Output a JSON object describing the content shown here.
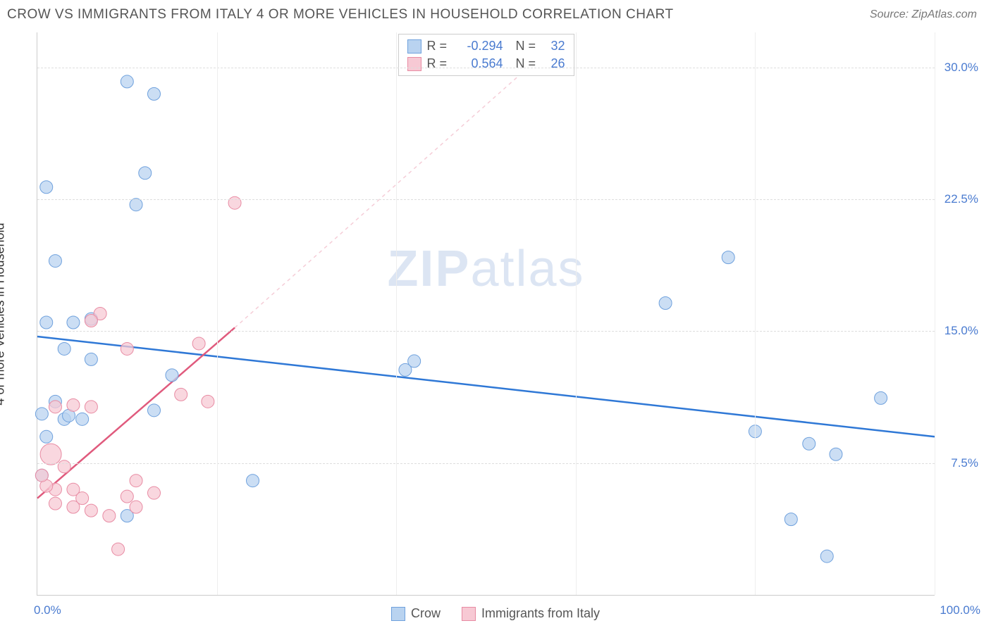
{
  "header": {
    "title": "CROW VS IMMIGRANTS FROM ITALY 4 OR MORE VEHICLES IN HOUSEHOLD CORRELATION CHART",
    "source": "Source: ZipAtlas.com"
  },
  "ylabel": "4 or more Vehicles in Household",
  "watermark": {
    "bold": "ZIP",
    "light": "atlas"
  },
  "chart": {
    "type": "scatter",
    "background_color": "#ffffff",
    "grid_color": "#dddddd",
    "axis_color": "#cccccc",
    "tick_color": "#4a7bd0",
    "tick_fontsize": 17,
    "xlim": [
      0,
      100
    ],
    "ylim": [
      0,
      32
    ],
    "xticks": [
      {
        "v": 0,
        "label": "0.0%"
      },
      {
        "v": 100,
        "label": "100.0%"
      }
    ],
    "vgrid": [
      20,
      40,
      60,
      80,
      100
    ],
    "yticks": [
      {
        "v": 7.5,
        "label": "7.5%"
      },
      {
        "v": 15.0,
        "label": "15.0%"
      },
      {
        "v": 22.5,
        "label": "22.5%"
      },
      {
        "v": 30.0,
        "label": "30.0%"
      }
    ],
    "series": [
      {
        "name": "Crow",
        "marker_fill": "#b9d3f0",
        "marker_stroke": "#6fa1dd",
        "marker_r": 9,
        "line_color": "#2f78d6",
        "line_width": 2.5,
        "dashed_color": "#b9d3f0",
        "R": "-0.294",
        "N": "32",
        "trend": {
          "x1": 0,
          "y1": 14.7,
          "x2": 100,
          "y2": 9.0
        },
        "points": [
          {
            "x": 1,
            "y": 23.2
          },
          {
            "x": 10,
            "y": 29.2
          },
          {
            "x": 13,
            "y": 28.5
          },
          {
            "x": 12,
            "y": 24.0
          },
          {
            "x": 11,
            "y": 22.2
          },
          {
            "x": 2,
            "y": 19.0
          },
          {
            "x": 1,
            "y": 15.5
          },
          {
            "x": 4,
            "y": 15.5
          },
          {
            "x": 3,
            "y": 14.0
          },
          {
            "x": 6,
            "y": 13.4
          },
          {
            "x": 2,
            "y": 11.0
          },
          {
            "x": 3,
            "y": 10.0
          },
          {
            "x": 3.5,
            "y": 10.2
          },
          {
            "x": 5,
            "y": 10.0
          },
          {
            "x": 1,
            "y": 9.0
          },
          {
            "x": 10,
            "y": 4.5
          },
          {
            "x": 13,
            "y": 10.5
          },
          {
            "x": 15,
            "y": 12.5
          },
          {
            "x": 24,
            "y": 6.5
          },
          {
            "x": 41,
            "y": 12.8
          },
          {
            "x": 42,
            "y": 13.3
          },
          {
            "x": 70,
            "y": 16.6
          },
          {
            "x": 77,
            "y": 19.2
          },
          {
            "x": 80,
            "y": 9.3
          },
          {
            "x": 84,
            "y": 4.3
          },
          {
            "x": 86,
            "y": 8.6
          },
          {
            "x": 88,
            "y": 2.2
          },
          {
            "x": 89,
            "y": 8.0
          },
          {
            "x": 94,
            "y": 11.2
          },
          {
            "x": 0.5,
            "y": 6.8
          },
          {
            "x": 0.5,
            "y": 10.3
          },
          {
            "x": 6,
            "y": 15.7
          }
        ]
      },
      {
        "name": "Immigrants from Italy",
        "marker_fill": "#f7c9d4",
        "marker_stroke": "#e88ba3",
        "marker_r": 9,
        "line_color": "#e05a7d",
        "line_width": 2.5,
        "dashed_color": "#f5cdd7",
        "R": "0.564",
        "N": "26",
        "trend": {
          "x1": 0,
          "y1": 5.5,
          "x2": 22,
          "y2": 15.2
        },
        "trend_dashed": {
          "x1": 22,
          "y1": 15.2,
          "x2": 58,
          "y2": 31.5
        },
        "points": [
          {
            "x": 22,
            "y": 22.3
          },
          {
            "x": 7,
            "y": 16.0
          },
          {
            "x": 6,
            "y": 15.6
          },
          {
            "x": 10,
            "y": 14.0
          },
          {
            "x": 18,
            "y": 14.3
          },
          {
            "x": 16,
            "y": 11.4
          },
          {
            "x": 19,
            "y": 11.0
          },
          {
            "x": 2,
            "y": 10.7
          },
          {
            "x": 4,
            "y": 10.8
          },
          {
            "x": 6,
            "y": 10.7
          },
          {
            "x": 1.5,
            "y": 8.0,
            "r": 15
          },
          {
            "x": 3,
            "y": 7.3
          },
          {
            "x": 2,
            "y": 6.0
          },
          {
            "x": 4,
            "y": 6.0
          },
          {
            "x": 4,
            "y": 5.0
          },
          {
            "x": 5,
            "y": 5.5
          },
          {
            "x": 6,
            "y": 4.8
          },
          {
            "x": 8,
            "y": 4.5
          },
          {
            "x": 9,
            "y": 2.6
          },
          {
            "x": 10,
            "y": 5.6
          },
          {
            "x": 11,
            "y": 5.0
          },
          {
            "x": 11,
            "y": 6.5
          },
          {
            "x": 13,
            "y": 5.8
          },
          {
            "x": 2,
            "y": 5.2
          },
          {
            "x": 1,
            "y": 6.2
          },
          {
            "x": 0.5,
            "y": 6.8
          }
        ]
      }
    ]
  },
  "legend_top": {
    "rows": [
      {
        "fill": "#b9d3f0",
        "stroke": "#6fa1dd",
        "r_lbl": "R =",
        "r_val": "-0.294",
        "n_lbl": "N =",
        "n_val": "32"
      },
      {
        "fill": "#f7c9d4",
        "stroke": "#e88ba3",
        "r_lbl": "R =",
        "r_val": "0.564",
        "n_lbl": "N =",
        "n_val": "26"
      }
    ]
  },
  "legend_bottom": {
    "items": [
      {
        "fill": "#b9d3f0",
        "stroke": "#6fa1dd",
        "label": "Crow"
      },
      {
        "fill": "#f7c9d4",
        "stroke": "#e88ba3",
        "label": "Immigrants from Italy"
      }
    ]
  }
}
